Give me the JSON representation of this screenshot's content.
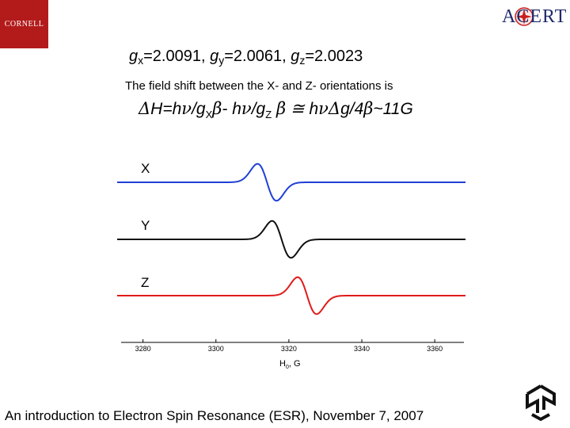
{
  "logos": {
    "left": "CORNELL",
    "right": "ACERT"
  },
  "g_values": {
    "x_label": "x",
    "x_value": "=2.0091,",
    "y_label": "y",
    "y_value": "=2.0061,",
    "z_label": "z",
    "z_value": "=2.0023"
  },
  "shift_text": "The field shift between the X- and Z- orientations is",
  "formula": {
    "delta": "Δ",
    "part1": "H=h",
    "nu": "ν",
    "part2": "/g",
    "sub1": "X",
    "beta": "β",
    "part3": "- h",
    "part4": "/g",
    "sub2": "Z",
    "approx": "≅",
    "part5": "h",
    "part6": "g/4",
    "part7": "~11G"
  },
  "footer": "An introduction to Electron Spin Resonance (ESR), November 7, 2007",
  "chart_data": {
    "type": "line",
    "series": [
      {
        "name": "X",
        "color": "#1f3fd6",
        "center": 3314
      },
      {
        "name": "Y",
        "color": "#111111",
        "center": 3318
      },
      {
        "name": "Z",
        "color": "#e01a1a",
        "center": 3325
      }
    ],
    "x_ticks": [
      "3280",
      "3300",
      "3320",
      "3340",
      "3360"
    ],
    "xlim": [
      3274,
      3368
    ],
    "xlabel": "H",
    "xlabel_sub": "0",
    "xlabel_unit": ", G"
  }
}
